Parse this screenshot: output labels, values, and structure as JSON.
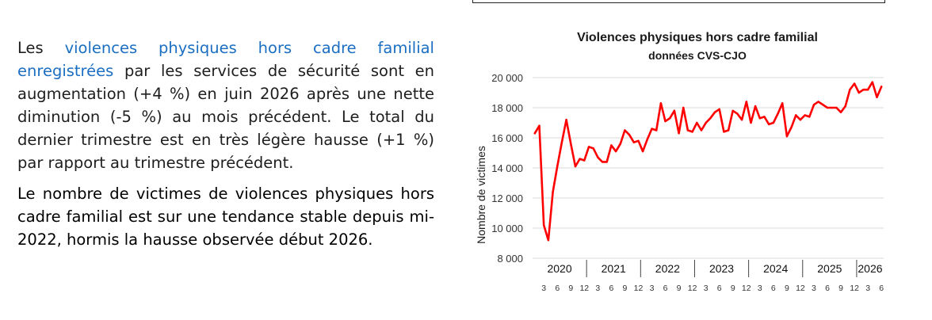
{
  "text": {
    "p1_prefix": "Les ",
    "p1_highlight": "violences physiques hors cadre familial enregistrées",
    "p1_suffix": " par les services de sécurité sont en augmentation (+4 %) en juin 2026 après une nette diminution (-5 %) au mois précédent. Le total du dernier trimestre est en très légère hausse (+1 %) par rapport au trimestre précédent.",
    "p2": "Le nombre de victimes de violences physiques hors cadre familial est sur une tendance stable depuis mi-2022, hormis la hausse observée début 2026."
  },
  "colors": {
    "highlight": "#1b6ec2",
    "series": "#ff0000",
    "grid": "#d9d9d9"
  },
  "chart_data": {
    "type": "line",
    "title": "Violences physiques hors cadre familial",
    "subtitle": "données CVS-CJO",
    "xlabel": "",
    "ylabel": "Nombre de victimes",
    "ylim": [
      8000,
      20000
    ],
    "yticks": [
      8000,
      10000,
      12000,
      14000,
      16000,
      18000,
      20000
    ],
    "ytick_labels": [
      "8 000",
      "10 000",
      "12 000",
      "14 000",
      "16 000",
      "18 000",
      "20 000"
    ],
    "grid": true,
    "legend": "none",
    "x_start": "2020-01",
    "year_labels": [
      "2020",
      "2021",
      "2022",
      "2023",
      "2024",
      "2025",
      "2026"
    ],
    "month_tick_labels": [
      "3",
      "6",
      "9",
      "12"
    ],
    "month_ticks_2026": [
      "3",
      "6"
    ],
    "series": [
      {
        "name": "",
        "values": [
          16300,
          16800,
          10200,
          9200,
          12400,
          14100,
          15700,
          17200,
          15600,
          14100,
          14600,
          14500,
          15400,
          15300,
          14700,
          14400,
          14400,
          15500,
          15100,
          15600,
          16500,
          16200,
          15700,
          15800,
          15100,
          15900,
          16600,
          16500,
          18300,
          17100,
          17300,
          17800,
          16300,
          18000,
          16500,
          16400,
          17000,
          16500,
          17000,
          17300,
          17700,
          17900,
          16400,
          16500,
          17800,
          17600,
          17200,
          18400,
          17000,
          18100,
          17300,
          17400,
          16900,
          17000,
          17600,
          18300,
          16100,
          16700,
          17500,
          17200,
          17500,
          17400,
          18200,
          18400,
          18200,
          18000,
          18000,
          18000,
          17700,
          18100,
          19200,
          19600,
          19000,
          19200,
          19200,
          19700,
          18700,
          19400
        ]
      }
    ]
  }
}
